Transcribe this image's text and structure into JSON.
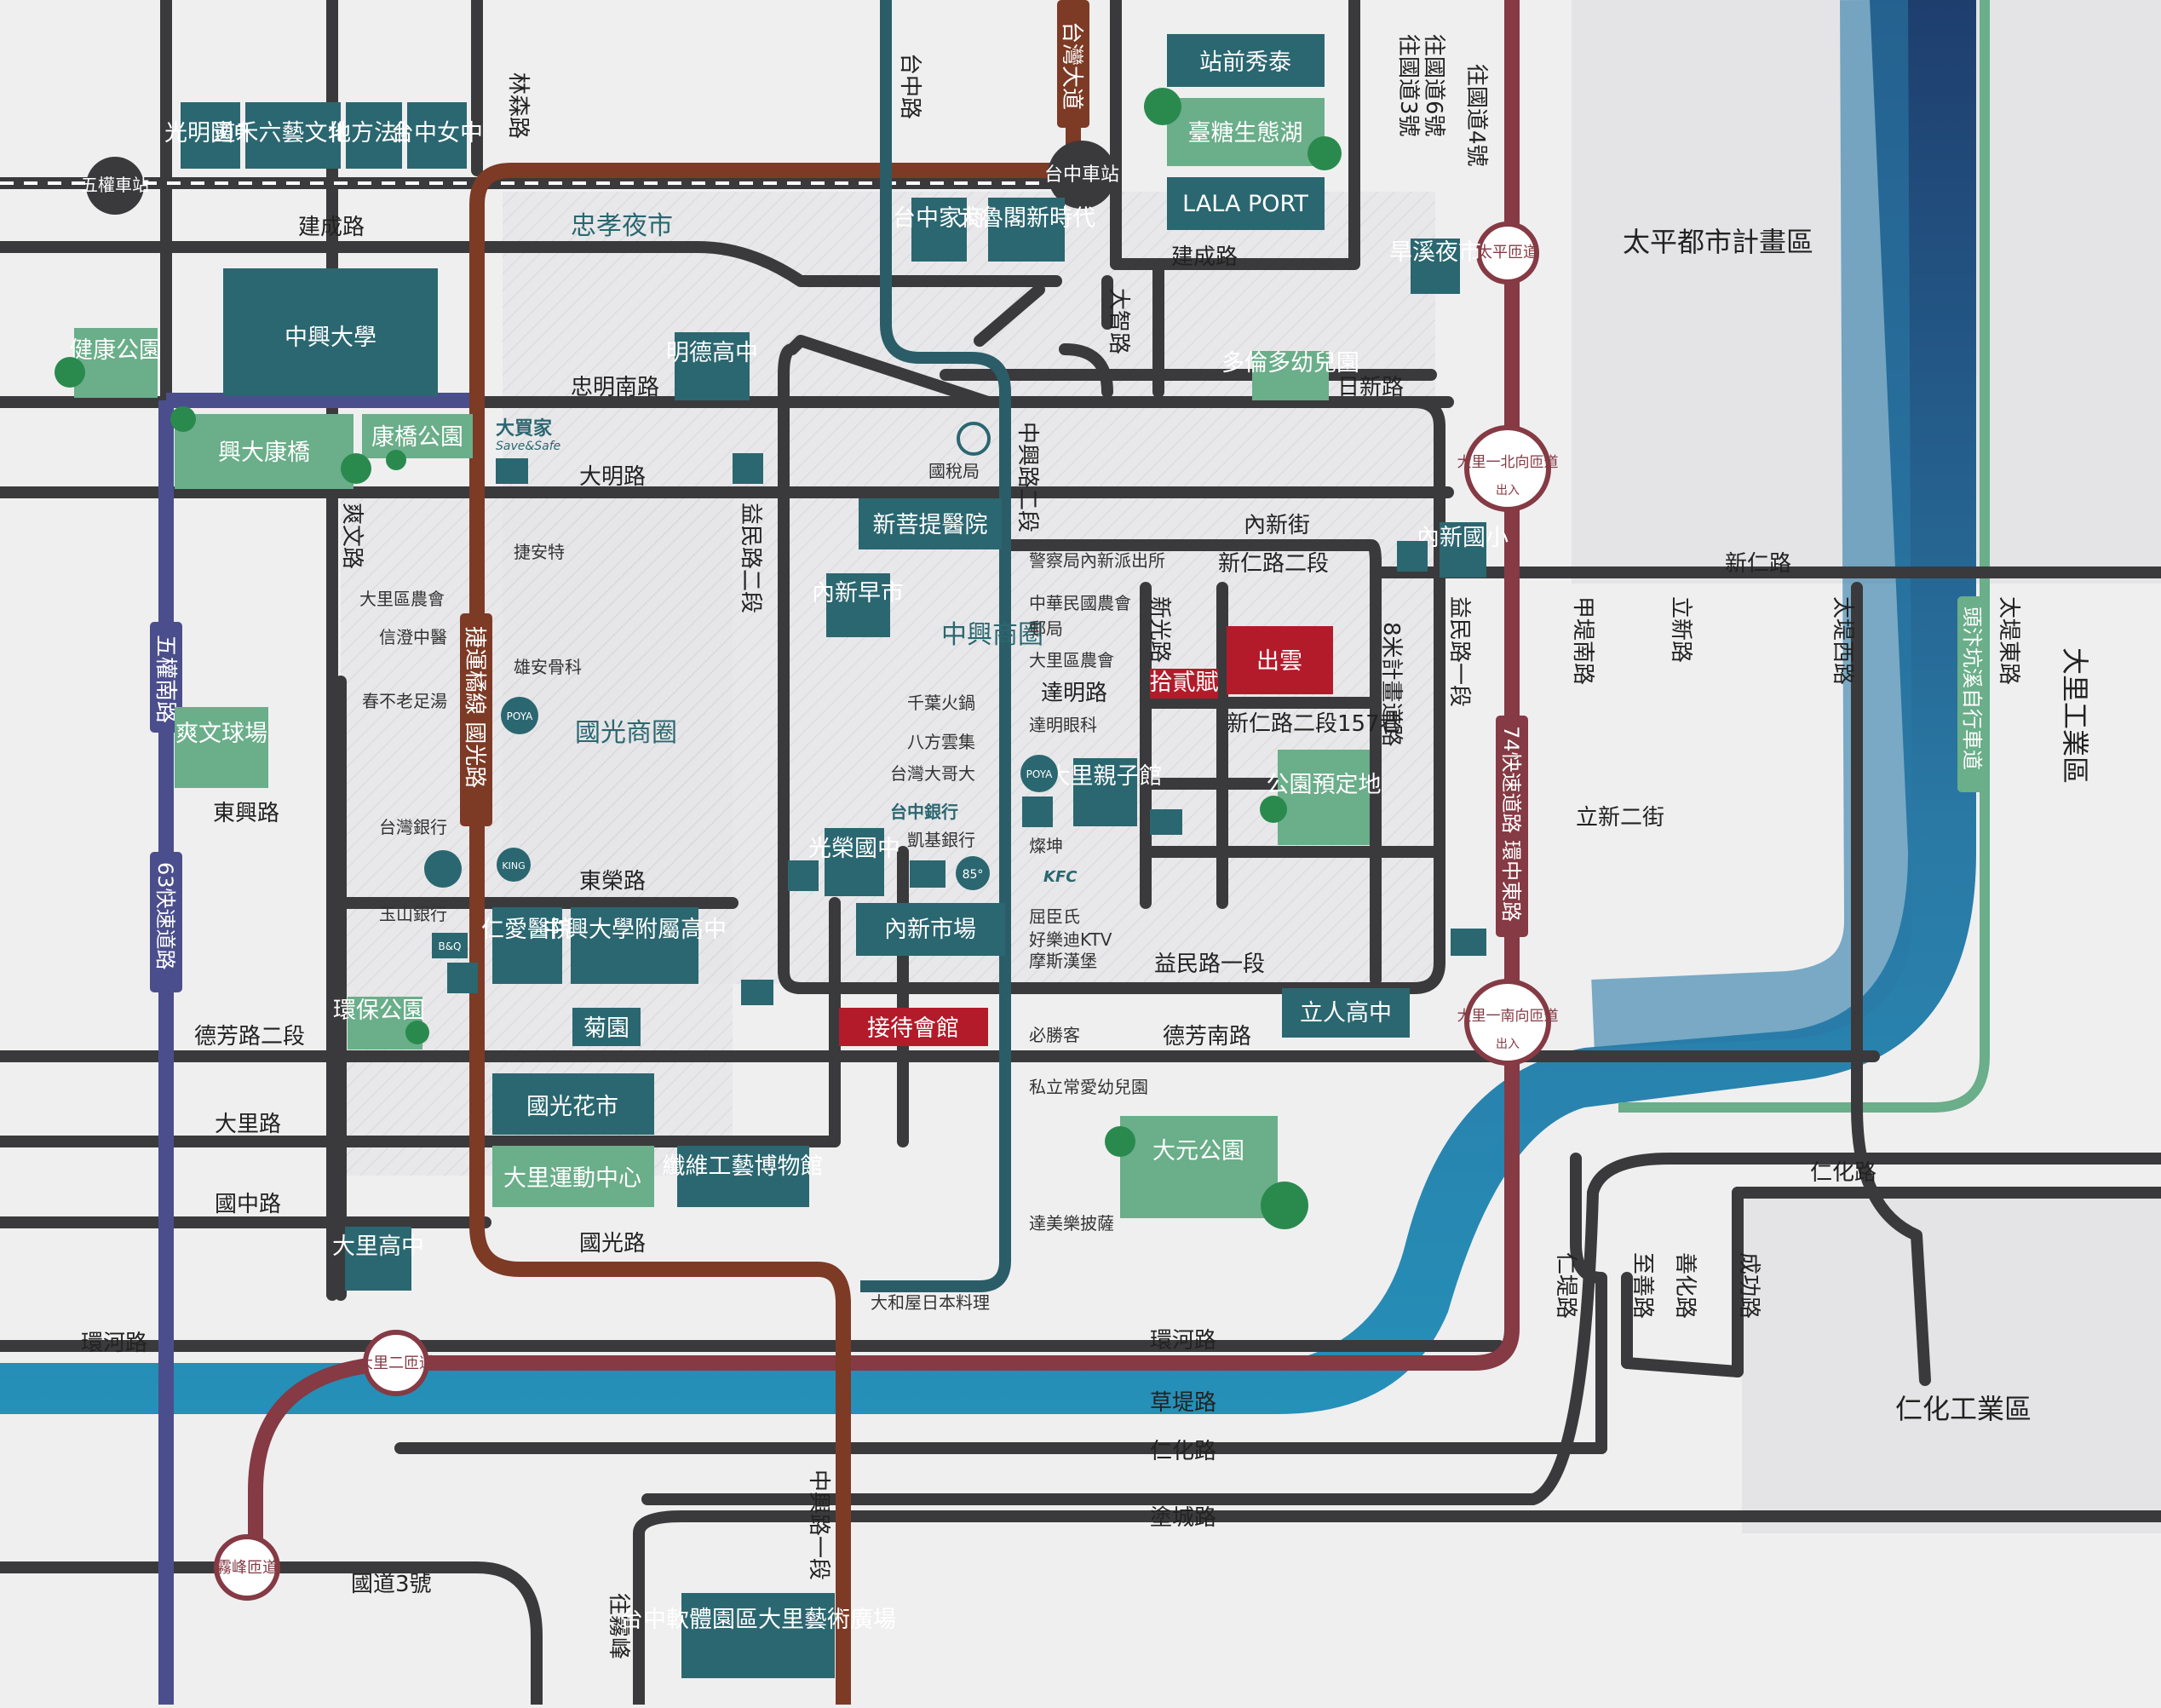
{
  "colors": {
    "teal": "#2b6770",
    "green": "#6aae8a",
    "red": "#b31b2a",
    "maroon": "#853a44",
    "brown": "#7d3a25",
    "navy": "#4b4e8c",
    "river": "#1f5f88",
    "road": "#3a3a3c",
    "bg": "#efeff0"
  },
  "roads": {
    "wuquan_s": "五權南路",
    "linsen": "林森路",
    "taichung": "台中路",
    "taiwan_blvd": "台灣大道",
    "jiancheng": "建成路",
    "jiancheng2": "建成路",
    "zhongming_s": "忠明南路",
    "riksin": "日新路",
    "daming": "大明路",
    "dazhi": "大智路",
    "shuangwen": "爽文路",
    "yimin2": "益民路二段",
    "zhongxing2": "中興路二段",
    "neixin_st": "內新街",
    "xinren2": "新仁路二段",
    "xinren": "新仁路",
    "xinguang": "新光路",
    "daming2": "達明路",
    "xinren157": "新仁路二段157巷",
    "m8": "8米計畫道路",
    "yimin1v": "益民路一段",
    "yimin1h": "益民路一段",
    "dongxing": "東興路",
    "dongrong": "東榮路",
    "defang2": "德芳路二段",
    "defang_s": "德芳南路",
    "dali": "大里路",
    "guozhong": "國中路",
    "guoguang": "國光路",
    "huanhe": "環河路",
    "huanhe2": "環河路",
    "caoti": "草堤路",
    "renhua": "仁化路",
    "renhua2": "仁化路",
    "tucheng": "塗城路",
    "zhongxing1": "中興路一段",
    "wangwufeng": "往霧峰",
    "jiadi_s": "甲堤南路",
    "lixin": "立新路",
    "lixin2": "立新二街",
    "taidi_w": "太堤西路",
    "taidi_e": "太堤東路",
    "rendi": "仁堤路",
    "zhishan": "至善路",
    "shanhua": "善化路",
    "chenggong": "成功路",
    "nh3": "國道3號",
    "exp63": "63快速道路",
    "exp74": "74快速道路 環中東路",
    "toufen": "頭汴坑溪自行車道",
    "brt": "捷運橘線 國光路",
    "to_nh": [
      "往國道3號",
      "往國道6號",
      "往國道4號"
    ]
  },
  "stations": {
    "wuquan": "五權車站",
    "taichung": "台中車站",
    "taiping": "太平匝道",
    "dali1_n": "大里一北向匝道",
    "dali1_n_sub": "出入",
    "dali1_s": "大里一南向匝道",
    "dali1_s_sub": "出入",
    "dali2": "大里二匝道",
    "wufeng": "霧峰匝道"
  },
  "boxes": {
    "guangming": "光明國中",
    "daohe": "道禾六藝文化館",
    "court": "地方法院",
    "tcgirls": "台中女中",
    "zhanqian": "站前秀泰",
    "sugar": "臺糖生態湖",
    "lalaport": "LALA PORT",
    "tcjs": "台中家商",
    "dalumo": "大魯閣新時代",
    "hanxi": "旱溪夜市",
    "nchu": "中興大學",
    "jiankang": "健康公園",
    "mingde": "明德高中",
    "duolunduo": "多倫多幼兒園",
    "xingda_bridge": "興大康橋",
    "kangqiao_park": "康橋公園",
    "xinsheng": "新菩提醫院",
    "neixin_market": "內新早市",
    "neixin_es": "內新國小",
    "chuyun": "出雲",
    "shierfu": "拾貳賦",
    "daliqin": "大里親子館",
    "park_plan": "公園預定地",
    "shuangwen_field": "爽文球場",
    "guangrong": "光榮國中",
    "neixin_shop": "內新市場",
    "renai": "仁愛醫院",
    "nchu_hs": "中興大學附屬高中",
    "huanbao": "環保公園",
    "juyuan": "菊園",
    "reception": "接待會館",
    "liren": "立人高中",
    "guoguang_flower": "國光花市",
    "dali_sport": "大里運動中心",
    "textile": "纖維工藝博物館",
    "dayuan": "大元公園",
    "dali_hs": "大里高中",
    "software": "台中軟體園區大里藝術廣場"
  },
  "labels": {
    "zhongxiao_night": "忠孝夜市",
    "zhongxing_biz": "中興商圈",
    "guoguang_biz": "國光商圈",
    "taiping_zone": "太平都市計畫區",
    "dali_ind": "大里工業區",
    "renhua_ind": "仁化工業區",
    "tax": "國稅局"
  },
  "brands": {
    "rtmart": "大買家",
    "rtmart_sub": "Save&Safe",
    "poya": "POYA",
    "kfc": "KFC",
    "n85": "85°",
    "bk": "KING",
    "bnq": "B&Q",
    "bank": "台中銀行"
  },
  "pois": {
    "jiean": "捷安特",
    "nonghui": "大里區農會",
    "xindeng": "信澄中醫",
    "xiongan": "雄安骨科",
    "chunbu": "春不老足湯",
    "twbank": "台灣銀行",
    "yushan": "玉山銀行",
    "police": "警察局內新派出所",
    "zhnonghui": "中華民國農會",
    "post": "郵局",
    "dalinonghui": "大里區農會",
    "daming_eye": "達明眼科",
    "qianye": "千葉火鍋",
    "bafang": "八方雲集",
    "twdage": "台灣大哥大",
    "kaiji": "凱基銀行",
    "cankun": "燦坤",
    "quchen": "屈臣氏",
    "haoledi": "好樂迪KTV",
    "mos": "摩斯漢堡",
    "pizza": "必勝客",
    "changai": "私立常愛幼兒園",
    "dominos": "達美樂披薩",
    "dahe": "大和屋日本料理"
  }
}
